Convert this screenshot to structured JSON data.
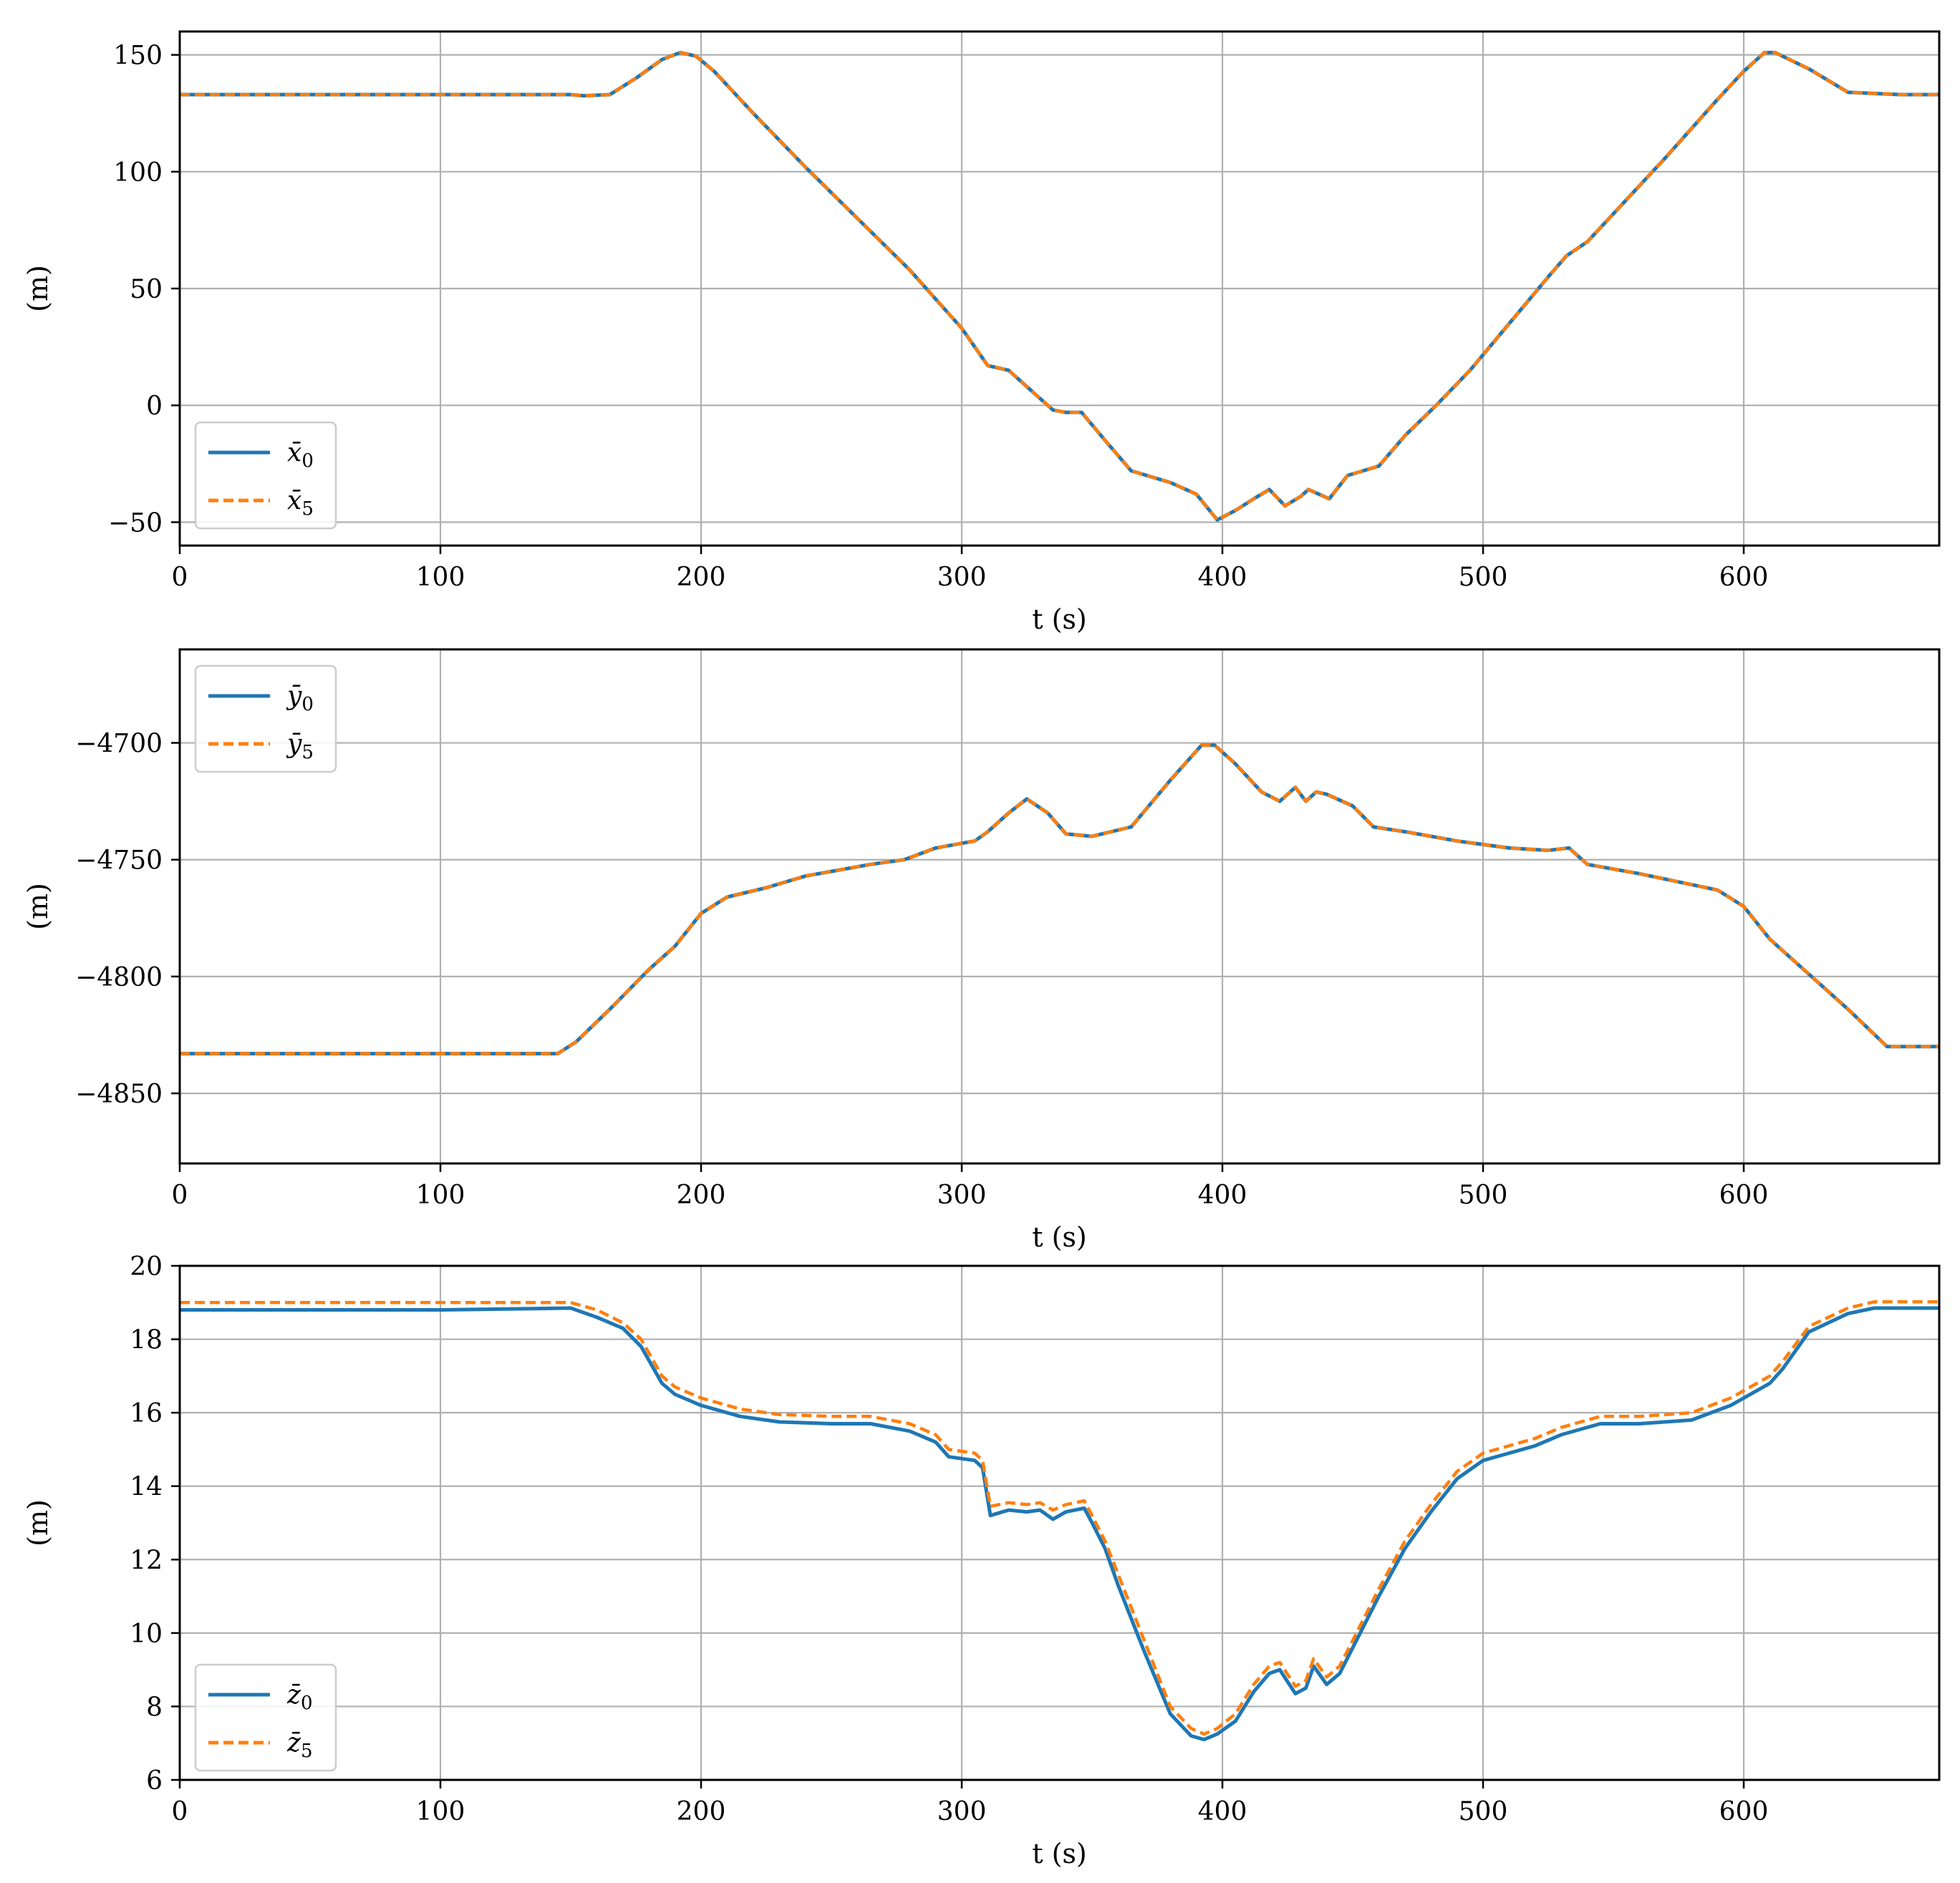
{
  "colors": {
    "series_solid": "#1f77b4",
    "series_dashed": "#ff7f0e",
    "grid": "#b0b0b0",
    "axes": "#000000",
    "background": "#ffffff"
  },
  "chart_data": [
    {
      "type": "line",
      "title": "",
      "xlabel": "t (s)",
      "ylabel": "(m)",
      "xlim": [
        0,
        675
      ],
      "ylim": [
        -60,
        160
      ],
      "xticks": [
        0,
        100,
        200,
        300,
        400,
        500,
        600
      ],
      "yticks": [
        -50,
        0,
        50,
        100,
        150
      ],
      "xtick_labels": [
        "0",
        "100",
        "200",
        "300",
        "400",
        "500",
        "600"
      ],
      "ytick_labels": [
        "−50",
        "0",
        "50",
        "100",
        "150"
      ],
      "grid": true,
      "legend_position": "lower-left",
      "series": [
        {
          "name": "x̄0",
          "symbol": "x̄",
          "subscript": "0",
          "style": "solid",
          "color": "#1f77b4",
          "x": [
            0,
            150,
            155,
            165,
            175,
            185,
            192,
            198,
            205,
            220,
            240,
            260,
            280,
            300,
            310,
            318,
            325,
            335,
            340,
            346,
            355,
            365,
            380,
            390,
            398,
            405,
            412,
            418,
            424,
            430,
            433,
            437,
            441,
            448,
            460,
            470,
            482,
            495,
            510,
            525,
            532,
            540,
            555,
            570,
            590,
            600,
            608,
            612,
            625,
            640,
            660,
            675
          ],
          "y": [
            133,
            133,
            132.5,
            133,
            140,
            148,
            151,
            149.5,
            143,
            125,
            102,
            80,
            58,
            33,
            17,
            15,
            8,
            -2,
            -3,
            -3,
            -15,
            -28,
            -33,
            -38,
            -49,
            -45,
            -40,
            -36,
            -43,
            -39,
            -36,
            -38,
            -40,
            -30,
            -26,
            -13,
            0,
            15,
            35,
            55,
            64,
            70,
            88,
            106,
            131,
            143,
            151,
            151,
            144,
            134,
            133,
            133
          ]
        },
        {
          "name": "x̄5",
          "symbol": "x̄",
          "subscript": "5",
          "style": "dashed",
          "color": "#ff7f0e",
          "x": [
            0,
            150,
            155,
            165,
            175,
            185,
            192,
            198,
            205,
            220,
            240,
            260,
            280,
            300,
            310,
            318,
            325,
            335,
            340,
            346,
            355,
            365,
            380,
            390,
            398,
            405,
            412,
            418,
            424,
            430,
            433,
            437,
            441,
            448,
            460,
            470,
            482,
            495,
            510,
            525,
            532,
            540,
            555,
            570,
            590,
            600,
            608,
            612,
            625,
            640,
            660,
            675
          ],
          "y": [
            133,
            133,
            132.5,
            133,
            140,
            148,
            151,
            149.5,
            143,
            125,
            102,
            80,
            58,
            33,
            17,
            15,
            8,
            -2,
            -3,
            -3,
            -15,
            -28,
            -33,
            -38,
            -49,
            -45,
            -40,
            -36,
            -43,
            -39,
            -36,
            -38,
            -40,
            -30,
            -26,
            -13,
            0,
            15,
            35,
            55,
            64,
            70,
            88,
            106,
            131,
            143,
            151,
            151,
            144,
            134,
            133,
            133
          ]
        }
      ]
    },
    {
      "type": "line",
      "title": "",
      "xlabel": "t (s)",
      "ylabel": "(m)",
      "xlim": [
        0,
        675
      ],
      "ylim": [
        -4880,
        -4660
      ],
      "xticks": [
        0,
        100,
        200,
        300,
        400,
        500,
        600
      ],
      "yticks": [
        -4850,
        -4800,
        -4750,
        -4700
      ],
      "xtick_labels": [
        "0",
        "100",
        "200",
        "300",
        "400",
        "500",
        "600"
      ],
      "ytick_labels": [
        "−4850",
        "−4800",
        "−4750",
        "−4700"
      ],
      "grid": true,
      "legend_position": "upper-left",
      "series": [
        {
          "name": "ȳ0",
          "symbol": "ȳ",
          "subscript": "0",
          "style": "solid",
          "color": "#1f77b4",
          "x": [
            0,
            145,
            152,
            165,
            180,
            190,
            200,
            210,
            225,
            240,
            265,
            278,
            290,
            305,
            310,
            318,
            325,
            333,
            340,
            350,
            365,
            380,
            392,
            397,
            405,
            415,
            422,
            428,
            432,
            436,
            440,
            450,
            458,
            470,
            490,
            510,
            525,
            533,
            540,
            560,
            590,
            600,
            610,
            625,
            640,
            655,
            675
          ],
          "y": [
            -4833,
            -4833,
            -4828,
            -4814,
            -4797,
            -4787,
            -4773,
            -4766,
            -4762,
            -4757,
            -4752,
            -4750,
            -4745,
            -4742,
            -4738,
            -4730,
            -4724,
            -4730,
            -4739,
            -4740,
            -4736,
            -4716,
            -4701,
            -4701,
            -4709,
            -4721,
            -4725,
            -4719,
            -4725,
            -4721,
            -4722,
            -4727,
            -4736,
            -4738,
            -4742,
            -4745,
            -4746,
            -4745,
            -4752,
            -4756,
            -4763,
            -4770,
            -4784,
            -4799,
            -4814,
            -4830,
            -4830
          ]
        },
        {
          "name": "ȳ5",
          "symbol": "ȳ",
          "subscript": "5",
          "style": "dashed",
          "color": "#ff7f0e",
          "x": [
            0,
            145,
            152,
            165,
            180,
            190,
            200,
            210,
            225,
            240,
            265,
            278,
            290,
            305,
            310,
            318,
            325,
            333,
            340,
            350,
            365,
            380,
            392,
            397,
            405,
            415,
            422,
            428,
            432,
            436,
            440,
            450,
            458,
            470,
            490,
            510,
            525,
            533,
            540,
            560,
            590,
            600,
            610,
            625,
            640,
            655,
            675
          ],
          "y": [
            -4833,
            -4833,
            -4828,
            -4814,
            -4797,
            -4787,
            -4773,
            -4766,
            -4762,
            -4757,
            -4752,
            -4750,
            -4745,
            -4742,
            -4738,
            -4730,
            -4724,
            -4730,
            -4739,
            -4740,
            -4736,
            -4716,
            -4701,
            -4701,
            -4709,
            -4721,
            -4725,
            -4719,
            -4725,
            -4721,
            -4722,
            -4727,
            -4736,
            -4738,
            -4742,
            -4745,
            -4746,
            -4745,
            -4752,
            -4756,
            -4763,
            -4770,
            -4784,
            -4799,
            -4814,
            -4830,
            -4830
          ]
        }
      ]
    },
    {
      "type": "line",
      "title": "",
      "xlabel": "t (s)",
      "ylabel": "(m)",
      "xlim": [
        0,
        675
      ],
      "ylim": [
        6,
        20
      ],
      "xticks": [
        0,
        100,
        200,
        300,
        400,
        500,
        600
      ],
      "yticks": [
        6,
        8,
        10,
        12,
        14,
        16,
        18,
        20
      ],
      "xtick_labels": [
        "0",
        "100",
        "200",
        "300",
        "400",
        "500",
        "600"
      ],
      "ytick_labels": [
        "6",
        "8",
        "10",
        "12",
        "14",
        "16",
        "18",
        "20"
      ],
      "grid": true,
      "legend_position": "lower-left",
      "series": [
        {
          "name": "z̄0",
          "symbol": "z̄",
          "subscript": "0",
          "style": "solid",
          "color": "#1f77b4",
          "x": [
            0,
            100,
            150,
            160,
            170,
            177,
            185,
            190,
            200,
            215,
            230,
            250,
            265,
            280,
            290,
            295,
            305,
            308,
            311,
            318,
            325,
            330,
            335,
            340,
            347,
            350,
            355,
            360,
            370,
            380,
            388,
            393,
            398,
            405,
            412,
            418,
            422,
            428,
            432,
            435,
            440,
            445,
            450,
            460,
            470,
            480,
            490,
            500,
            510,
            520,
            530,
            545,
            560,
            580,
            595,
            610,
            615,
            625,
            640,
            650,
            675
          ],
          "y": [
            18.8,
            18.8,
            18.85,
            18.6,
            18.3,
            17.8,
            16.8,
            16.5,
            16.2,
            15.9,
            15.75,
            15.7,
            15.7,
            15.5,
            15.2,
            14.8,
            14.7,
            14.5,
            13.2,
            13.35,
            13.3,
            13.35,
            13.1,
            13.3,
            13.4,
            13.0,
            12.3,
            11.3,
            9.5,
            7.8,
            7.2,
            7.1,
            7.25,
            7.6,
            8.4,
            8.9,
            9.0,
            8.35,
            8.5,
            9.1,
            8.6,
            8.9,
            9.6,
            11.0,
            12.3,
            13.3,
            14.2,
            14.7,
            14.9,
            15.1,
            15.4,
            15.7,
            15.7,
            15.8,
            16.2,
            16.8,
            17.2,
            18.2,
            18.7,
            18.85,
            18.85
          ]
        },
        {
          "name": "z̄5",
          "symbol": "z̄",
          "subscript": "5",
          "style": "dashed",
          "color": "#ff7f0e",
          "x": [
            0,
            100,
            150,
            160,
            170,
            177,
            185,
            190,
            200,
            215,
            230,
            250,
            265,
            280,
            290,
            295,
            305,
            308,
            311,
            318,
            325,
            330,
            335,
            340,
            347,
            350,
            355,
            360,
            370,
            380,
            388,
            393,
            398,
            405,
            412,
            418,
            422,
            428,
            432,
            435,
            440,
            445,
            450,
            460,
            470,
            480,
            490,
            500,
            510,
            520,
            530,
            545,
            560,
            580,
            595,
            610,
            615,
            625,
            640,
            650,
            675
          ],
          "y": [
            19.0,
            19.0,
            19.0,
            18.8,
            18.45,
            18.0,
            17.0,
            16.7,
            16.4,
            16.1,
            15.95,
            15.9,
            15.9,
            15.7,
            15.4,
            15.0,
            14.9,
            14.7,
            13.45,
            13.55,
            13.5,
            13.55,
            13.35,
            13.5,
            13.6,
            13.2,
            12.5,
            11.6,
            9.8,
            8.0,
            7.4,
            7.25,
            7.4,
            7.8,
            8.6,
            9.1,
            9.2,
            8.55,
            8.7,
            9.3,
            8.8,
            9.1,
            9.8,
            11.2,
            12.5,
            13.5,
            14.4,
            14.9,
            15.1,
            15.3,
            15.6,
            15.9,
            15.9,
            16.0,
            16.4,
            17.0,
            17.4,
            18.35,
            18.85,
            19.02,
            19.02
          ]
        }
      ]
    }
  ]
}
